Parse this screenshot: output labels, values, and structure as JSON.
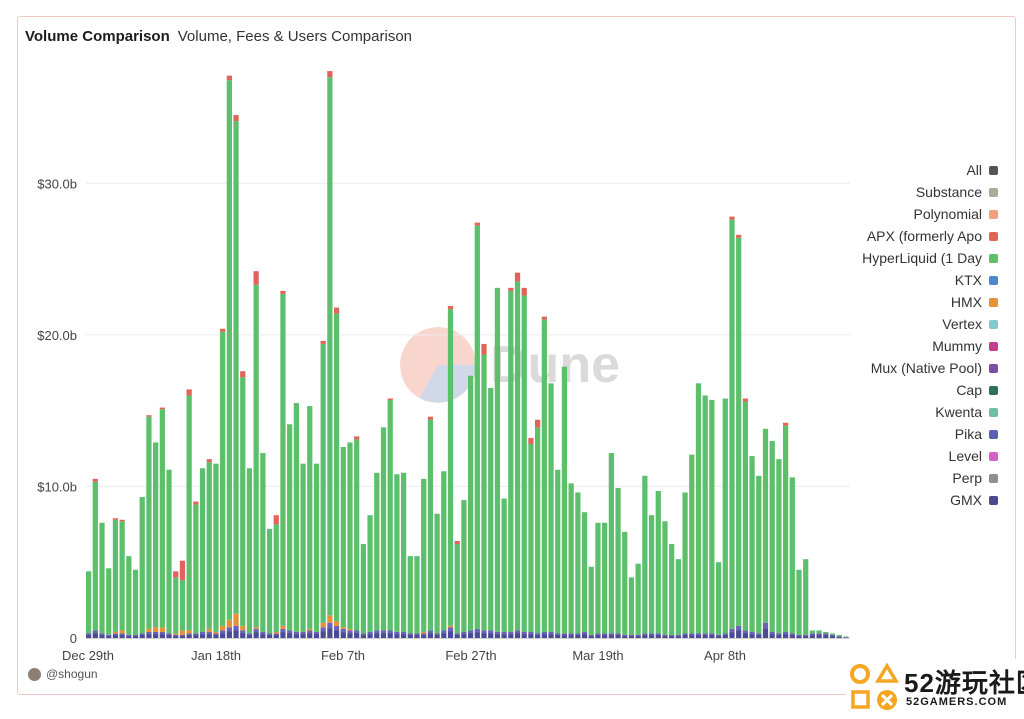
{
  "header": {
    "title": "Volume Comparison",
    "subtitle": "Volume, Fees & Users Comparison"
  },
  "author": "@shogun",
  "watermark": "Dune",
  "brand": {
    "name": "52游玩社区",
    "site": "52GAMERS.COM"
  },
  "colors": {
    "hyperliquid": "#5cbf6b",
    "apx": "#e0645a",
    "hmx": "#e69138",
    "gmx": "#4a4a96",
    "pika": "#6a63b8",
    "mux": "#7a4fa3",
    "other": "#b8b8b8"
  },
  "chart_data": {
    "type": "bar",
    "stacked": true,
    "x_ticks": [
      "Dec 29th",
      "Jan 18th",
      "Feb 7th",
      "Feb 27th",
      "Mar 19th",
      "Apr 8th"
    ],
    "y_ticks": [
      "0",
      "$10.0b",
      "$20.0b",
      "$30.0b"
    ],
    "ylim": [
      0,
      38
    ],
    "legend": [
      {
        "name": "All",
        "color": "#555555"
      },
      {
        "name": "Substance",
        "color": "#a8ad9a"
      },
      {
        "name": "Polynomial",
        "color": "#efa07e"
      },
      {
        "name": "APX (formerly Apo",
        "color": "#e0645a"
      },
      {
        "name": "HyperLiquid (1 Day",
        "color": "#5cbf6b"
      },
      {
        "name": "KTX",
        "color": "#4f86c6"
      },
      {
        "name": "HMX",
        "color": "#e69138"
      },
      {
        "name": "Vertex",
        "color": "#7dcbd0"
      },
      {
        "name": "Mummy",
        "color": "#c13f8c"
      },
      {
        "name": "Mux (Native Pool)",
        "color": "#7a4fa3"
      },
      {
        "name": "Cap",
        "color": "#2f6f5e"
      },
      {
        "name": "Kwenta",
        "color": "#6cc3a4"
      },
      {
        "name": "Pika",
        "color": "#5b5fb5"
      },
      {
        "name": "Level",
        "color": "#d163c5"
      },
      {
        "name": "Perp",
        "color": "#8f8f8f"
      },
      {
        "name": "GMX",
        "color": "#494a8f"
      }
    ],
    "totals": [
      4.4,
      10.5,
      7.6,
      4.6,
      7.9,
      7.8,
      5.4,
      4.5,
      9.3,
      14.7,
      12.9,
      15.2,
      11.1,
      4.4,
      5.1,
      16.4,
      9.0,
      11.2,
      11.8,
      11.5,
      20.4,
      37.1,
      34.5,
      17.6,
      11.2,
      24.2,
      12.2,
      7.2,
      8.1,
      22.9,
      14.1,
      15.5,
      11.5,
      15.3,
      11.5,
      19.6,
      37.4,
      21.8,
      12.6,
      12.9,
      13.3,
      6.2,
      8.1,
      10.9,
      13.9,
      15.8,
      10.8,
      10.9,
      5.4,
      5.4,
      10.5,
      14.6,
      8.2,
      11.0,
      21.9,
      6.4,
      9.1,
      17.3,
      27.4,
      19.4,
      16.5,
      23.1,
      9.2,
      23.1,
      24.1,
      23.1,
      13.2,
      14.4,
      21.2,
      16.8,
      11.1,
      17.9,
      10.2,
      9.6,
      8.3,
      4.7,
      7.6,
      7.6,
      12.2,
      9.9,
      7.0,
      4.0,
      4.9,
      10.7,
      8.1,
      9.7,
      7.7,
      6.2,
      5.2,
      9.6,
      12.1,
      16.8,
      16.0,
      15.7,
      5.0,
      15.8,
      27.8,
      26.6,
      15.8,
      12.0,
      10.7,
      13.8,
      13.0,
      11.8,
      14.2,
      10.6,
      4.5,
      5.2,
      0.5,
      0.5,
      0.4,
      0.3,
      0.2,
      0.1
    ],
    "apx": [
      0,
      0.2,
      0,
      0,
      0.1,
      0.1,
      0,
      0,
      0,
      0.1,
      0,
      0.1,
      0,
      0.4,
      1.3,
      0.4,
      0.2,
      0,
      0.2,
      0,
      0.2,
      0.3,
      0.4,
      0.4,
      0,
      0.9,
      0,
      0,
      0.6,
      0.2,
      0,
      0,
      0,
      0,
      0,
      0.2,
      0.4,
      0.4,
      0,
      0,
      0.2,
      0,
      0,
      0,
      0,
      0.1,
      0,
      0,
      0,
      0,
      0,
      0.2,
      0,
      0,
      0.2,
      0.2,
      0,
      0,
      0.2,
      0.7,
      0,
      0,
      0,
      0.2,
      0.6,
      0.5,
      0.4,
      0.5,
      0.2,
      0,
      0,
      0,
      0,
      0,
      0,
      0,
      0,
      0,
      0,
      0,
      0,
      0,
      0,
      0,
      0,
      0,
      0,
      0,
      0,
      0,
      0,
      0,
      0,
      0,
      0,
      0,
      0.2,
      0.2,
      0.2,
      0,
      0,
      0,
      0,
      0,
      0.2,
      0,
      0,
      0,
      0,
      0,
      0,
      0,
      0,
      0
    ],
    "hmx": [
      0,
      0,
      0,
      0,
      0.1,
      0.2,
      0,
      0,
      0,
      0.2,
      0.3,
      0.3,
      0,
      0.1,
      0.3,
      0.2,
      0,
      0,
      0.2,
      0.1,
      0.3,
      0.5,
      0.8,
      0.3,
      0,
      0.1,
      0,
      0,
      0.1,
      0.2,
      0,
      0,
      0,
      0.1,
      0,
      0.3,
      0.5,
      0.3,
      0.1,
      0.1,
      0,
      0,
      0,
      0,
      0,
      0,
      0,
      0,
      0,
      0,
      0.1,
      0,
      0,
      0,
      0.1,
      0,
      0,
      0,
      0,
      0,
      0,
      0,
      0,
      0,
      0,
      0,
      0,
      0,
      0,
      0,
      0,
      0,
      0,
      0,
      0,
      0,
      0,
      0,
      0,
      0,
      0,
      0,
      0,
      0,
      0,
      0,
      0,
      0,
      0,
      0,
      0,
      0,
      0,
      0,
      0,
      0,
      0,
      0,
      0,
      0,
      0,
      0,
      0,
      0,
      0,
      0,
      0,
      0,
      0,
      0,
      0,
      0,
      0,
      0
    ],
    "base": [
      0.3,
      0.5,
      0.3,
      0.2,
      0.3,
      0.3,
      0.2,
      0.2,
      0.3,
      0.4,
      0.4,
      0.4,
      0.3,
      0.2,
      0.2,
      0.3,
      0.3,
      0.4,
      0.4,
      0.3,
      0.5,
      0.7,
      0.8,
      0.5,
      0.3,
      0.6,
      0.4,
      0.3,
      0.3,
      0.6,
      0.5,
      0.4,
      0.4,
      0.5,
      0.4,
      0.7,
      1.0,
      0.8,
      0.6,
      0.5,
      0.5,
      0.3,
      0.4,
      0.5,
      0.5,
      0.5,
      0.4,
      0.4,
      0.3,
      0.3,
      0.3,
      0.5,
      0.3,
      0.5,
      0.7,
      0.3,
      0.4,
      0.5,
      0.6,
      0.5,
      0.5,
      0.4,
      0.4,
      0.4,
      0.5,
      0.4,
      0.4,
      0.3,
      0.4,
      0.4,
      0.3,
      0.3,
      0.3,
      0.3,
      0.4,
      0.2,
      0.3,
      0.3,
      0.3,
      0.3,
      0.2,
      0.2,
      0.2,
      0.3,
      0.3,
      0.3,
      0.2,
      0.2,
      0.2,
      0.3,
      0.3,
      0.3,
      0.3,
      0.3,
      0.2,
      0.3,
      0.6,
      0.8,
      0.5,
      0.4,
      0.3,
      1.0,
      0.4,
      0.3,
      0.4,
      0.3,
      0.2,
      0.2,
      0.3,
      0.3,
      0.3,
      0.2,
      0.1,
      0.05
    ]
  }
}
